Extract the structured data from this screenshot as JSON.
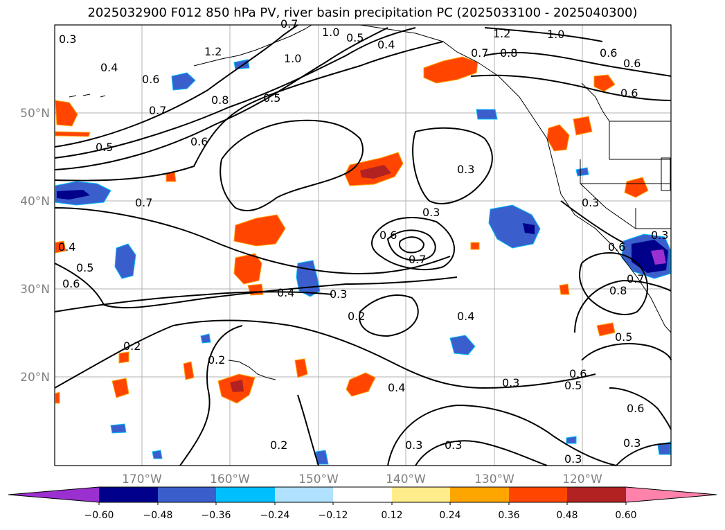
{
  "title": "2025032900 F012 850 hPa PV, river basin precipitation PC (2025033100 - 2025040300)",
  "lat_labels": [
    "50°N",
    "40°N",
    "30°N",
    "20°N"
  ],
  "lon_labels": [
    "170°W",
    "160°W",
    "150°W",
    "140°W",
    "130°W",
    "120°W"
  ],
  "contour_labels": [
    "0.3",
    "0.4",
    "0.6",
    "0.7",
    "1.2",
    "0.7",
    "1.0",
    "1.0",
    "0.5",
    "0.4",
    "1.2",
    "0.8",
    "0.7",
    "1.0",
    "0.6",
    "0.6",
    "0.6",
    "0.8",
    "0.5",
    "0.5",
    "0.6",
    "0.7",
    "0.6",
    "0.3",
    "0.3",
    "0.3",
    "0.6",
    "0.7",
    "0.4",
    "0.3",
    "0.2",
    "0.4",
    "0.4",
    "0.5",
    "0.6",
    "0.2",
    "0.2",
    "0.4",
    "0.3",
    "0.3",
    "0.6",
    "0.5",
    "0.6",
    "0.2",
    "0.3",
    "0.3",
    "0.3",
    "0.8",
    "0.5",
    "0.7",
    "0.3"
  ],
  "colorbar": {
    "ticks": [
      "−0.60",
      "−0.48",
      "−0.36",
      "−0.24",
      "−0.12",
      "0.12",
      "0.24",
      "0.36",
      "0.48",
      "0.60"
    ],
    "colors": [
      "#9b30d0",
      "#00008b",
      "#3a5fcd",
      "#00bfff",
      "#b0e2ff",
      "#ffffff",
      "#ffec8b",
      "#ffa500",
      "#ff4500",
      "#b22222",
      "#ff82ab"
    ]
  },
  "fill_colors": {
    "neg_light": "#00bfff",
    "neg_mid": "#3a5fcd",
    "neg_dark": "#00008b",
    "neg_purple": "#9b30d0",
    "pos_yellow": "#ffec8b",
    "pos_orange": "#ffa500",
    "pos_red": "#ff4500",
    "pos_dark": "#b22222"
  }
}
